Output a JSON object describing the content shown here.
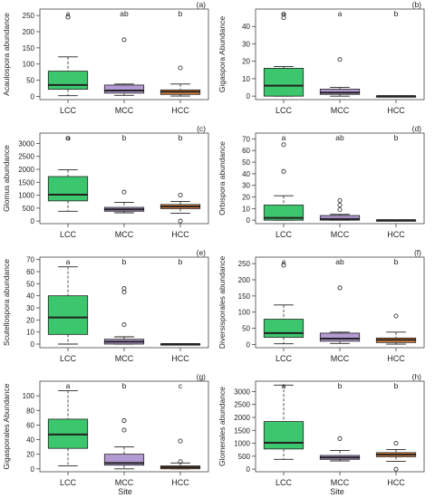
{
  "figure": {
    "shared_xlabel": "Site"
  },
  "colors": {
    "LCC": "#3cc76e",
    "MCC": "#b49ad3",
    "HCC": "#e8863a",
    "line": "#222222",
    "frame": "#444444"
  },
  "chart_data": [
    {
      "type": "boxplot",
      "panel": "(a)",
      "ylabel": "Acaulospora abundance",
      "categories": [
        "LCC",
        "MCC",
        "HCC"
      ],
      "letters": [
        "a",
        "ab",
        "b"
      ],
      "yticks": [
        0,
        50,
        100,
        150,
        200,
        250
      ],
      "ylim": [
        -10,
        270
      ],
      "boxes": [
        {
          "min": 2,
          "q1": 22,
          "median": 35,
          "q3": 78,
          "max": 122,
          "outliers": [
            245
          ]
        },
        {
          "min": 3,
          "q1": 10,
          "median": 18,
          "q3": 35,
          "max": 38,
          "outliers": [
            175
          ]
        },
        {
          "min": 1,
          "q1": 6,
          "median": 14,
          "q3": 20,
          "max": 38,
          "outliers": [
            88
          ]
        }
      ]
    },
    {
      "type": "boxplot",
      "panel": "(b)",
      "ylabel": "Gigaspora Abundance",
      "categories": [
        "LCC",
        "MCC",
        "HCC"
      ],
      "letters": [
        "a",
        "a",
        "b"
      ],
      "yticks": [
        0,
        10,
        20,
        30,
        40
      ],
      "ylim": [
        -2,
        50
      ],
      "boxes": [
        {
          "min": 0,
          "q1": 0,
          "median": 6,
          "q3": 16,
          "max": 17,
          "outliers": [
            45,
            47
          ]
        },
        {
          "min": 0,
          "q1": 1,
          "median": 2,
          "q3": 4,
          "max": 5,
          "outliers": [
            21
          ]
        },
        {
          "min": 0,
          "q1": 0,
          "median": 0,
          "q3": 0,
          "max": 0,
          "outliers": []
        }
      ]
    },
    {
      "type": "boxplot",
      "panel": "(c)",
      "ylabel": "Glomus abundance",
      "categories": [
        "LCC",
        "MCC",
        "HCC"
      ],
      "letters": [
        "a",
        "b",
        "b"
      ],
      "yticks": [
        0,
        500,
        1000,
        1500,
        2000,
        2500,
        3000
      ],
      "ylim": [
        -100,
        3400
      ],
      "boxes": [
        {
          "min": 380,
          "q1": 780,
          "median": 1020,
          "q3": 1720,
          "max": 1980,
          "outliers": [
            3200
          ]
        },
        {
          "min": 320,
          "q1": 380,
          "median": 450,
          "q3": 530,
          "max": 720,
          "outliers": [
            1120
          ]
        },
        {
          "min": 300,
          "q1": 480,
          "median": 560,
          "q3": 640,
          "max": 760,
          "outliers": [
            1000,
            0
          ]
        }
      ]
    },
    {
      "type": "boxplot",
      "panel": "(d)",
      "ylabel": "Orbispora abundance",
      "categories": [
        "LCC",
        "MCC",
        "HCC"
      ],
      "letters": [
        "a",
        "ab",
        "b"
      ],
      "yticks": [
        0,
        10,
        20,
        30,
        40,
        50,
        60,
        70
      ],
      "ylim": [
        -3,
        75
      ],
      "boxes": [
        {
          "min": 0,
          "q1": 0,
          "median": 2,
          "q3": 13,
          "max": 21,
          "outliers": [
            42,
            65
          ]
        },
        {
          "min": 0,
          "q1": 0,
          "median": 1,
          "q3": 4,
          "max": 5,
          "outliers": [
            9,
            13,
            17
          ]
        },
        {
          "min": 0,
          "q1": 0,
          "median": 0,
          "q3": 0,
          "max": 0,
          "outliers": []
        }
      ]
    },
    {
      "type": "boxplot",
      "panel": "(e)",
      "ylabel": "Scutellospora abundance",
      "categories": [
        "LCC",
        "MCC",
        "HCC"
      ],
      "letters": [
        "a",
        "b",
        "b"
      ],
      "yticks": [
        0,
        10,
        20,
        30,
        40,
        50,
        60,
        70
      ],
      "ylim": [
        -3,
        72
      ],
      "boxes": [
        {
          "min": 0,
          "q1": 8,
          "median": 22,
          "q3": 40,
          "max": 64,
          "outliers": []
        },
        {
          "min": 0,
          "q1": 0,
          "median": 2,
          "q3": 4,
          "max": 6,
          "outliers": [
            16,
            43,
            46
          ]
        },
        {
          "min": 0,
          "q1": 0,
          "median": 0,
          "q3": 0,
          "max": 0,
          "outliers": []
        }
      ]
    },
    {
      "type": "boxplot",
      "panel": "(f)",
      "ylabel": "Diversisporales abundance",
      "categories": [
        "LCC",
        "MCC",
        "HCC"
      ],
      "letters": [
        "a",
        "ab",
        "b"
      ],
      "yticks": [
        0,
        50,
        100,
        150,
        200,
        250
      ],
      "ylim": [
        -10,
        270
      ],
      "boxes": [
        {
          "min": 2,
          "q1": 22,
          "median": 35,
          "q3": 78,
          "max": 122,
          "outliers": [
            245
          ]
        },
        {
          "min": 3,
          "q1": 10,
          "median": 18,
          "q3": 35,
          "max": 38,
          "outliers": [
            175
          ]
        },
        {
          "min": 1,
          "q1": 6,
          "median": 14,
          "q3": 20,
          "max": 38,
          "outliers": [
            88
          ]
        }
      ]
    },
    {
      "type": "boxplot",
      "panel": "(g)",
      "ylabel": "Gigasporales Abundance",
      "categories": [
        "LCC",
        "MCC",
        "HCC"
      ],
      "letters": [
        "a",
        "b",
        "c"
      ],
      "yticks": [
        0,
        20,
        40,
        60,
        80,
        100
      ],
      "ylim": [
        -4,
        120
      ],
      "boxes": [
        {
          "min": 4,
          "q1": 28,
          "median": 47,
          "q3": 68,
          "max": 107,
          "outliers": []
        },
        {
          "min": 0,
          "q1": 5,
          "median": 8,
          "q3": 20,
          "max": 30,
          "outliers": [
            53,
            66
          ]
        },
        {
          "min": 0,
          "q1": 0,
          "median": 2,
          "q3": 4,
          "max": 8,
          "outliers": [
            10,
            38
          ]
        }
      ]
    },
    {
      "type": "boxplot",
      "panel": "(h)",
      "ylabel": "Glomerales abundance",
      "categories": [
        "LCC",
        "MCC",
        "HCC"
      ],
      "letters": [
        "a",
        "b",
        "b"
      ],
      "yticks": [
        0,
        500,
        1000,
        1500,
        2000,
        2500,
        3000
      ],
      "ylim": [
        -100,
        3400
      ],
      "boxes": [
        {
          "min": 380,
          "q1": 780,
          "median": 1020,
          "q3": 1840,
          "max": 3250,
          "outliers": []
        },
        {
          "min": 320,
          "q1": 380,
          "median": 450,
          "q3": 530,
          "max": 720,
          "outliers": [
            1180
          ]
        },
        {
          "min": 300,
          "q1": 480,
          "median": 560,
          "q3": 640,
          "max": 760,
          "outliers": [
            1000,
            0
          ]
        }
      ]
    }
  ]
}
